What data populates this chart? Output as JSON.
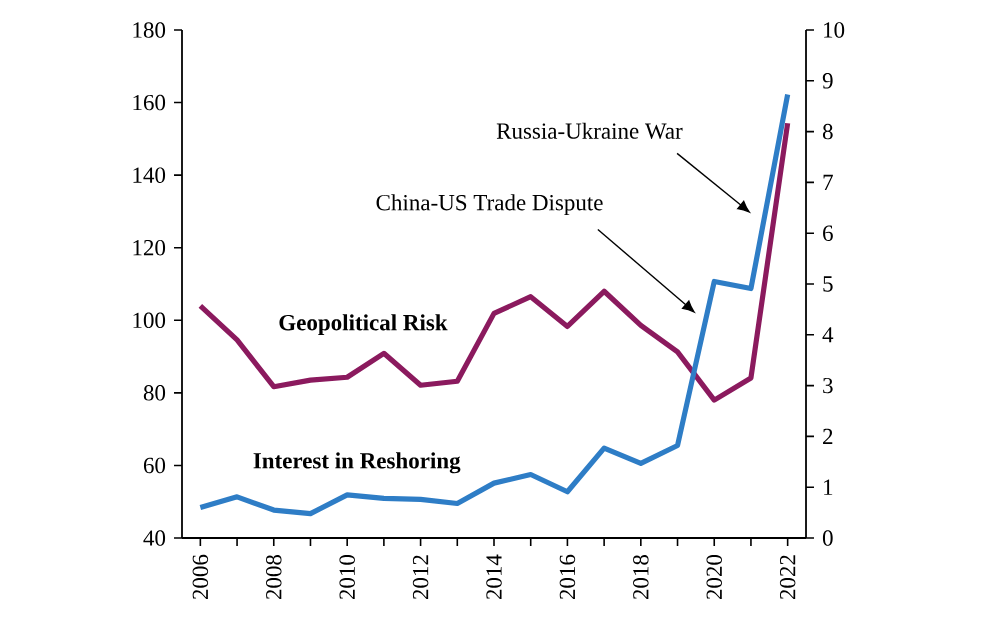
{
  "chart_data": {
    "type": "line",
    "x": [
      2006,
      2007,
      2008,
      2009,
      2010,
      2011,
      2012,
      2013,
      2014,
      2015,
      2016,
      2017,
      2018,
      2019,
      2020,
      2021,
      2022
    ],
    "series": [
      {
        "name": "Geopolitical Risk",
        "color": "#8b1a5e",
        "values": [
          104,
          94.6,
          81.7,
          83.5,
          84.3,
          90.9,
          82.1,
          83.2,
          101.9,
          106.5,
          98.3,
          108,
          98.6,
          91.3,
          78,
          84.1,
          154.3
        ]
      },
      {
        "name": "Interest in Reshoring",
        "color": "#2e7dc6",
        "axis": "y2",
        "values": [
          0.6,
          0.81,
          0.55,
          0.48,
          0.85,
          0.78,
          0.76,
          0.68,
          1.08,
          1.25,
          0.91,
          1.77,
          1.47,
          1.82,
          5.05,
          4.91,
          8.73
        ]
      }
    ],
    "xlim": [
      2005.5,
      2022.5
    ],
    "xticks": [
      2006,
      2008,
      2010,
      2012,
      2014,
      2016,
      2018,
      2020,
      2022
    ],
    "ylim": [
      40,
      180
    ],
    "yticks": [
      40,
      60,
      80,
      100,
      120,
      140,
      160,
      180
    ],
    "y2lim": [
      0,
      10
    ],
    "y2ticks": [
      0,
      1,
      2,
      3,
      4,
      5,
      6,
      7,
      8,
      9,
      10
    ],
    "annotations": [
      "China-US Trade Dispute",
      "Russia-Ukraine War"
    ],
    "grid": false,
    "marker": "none",
    "line_style": "solid"
  }
}
